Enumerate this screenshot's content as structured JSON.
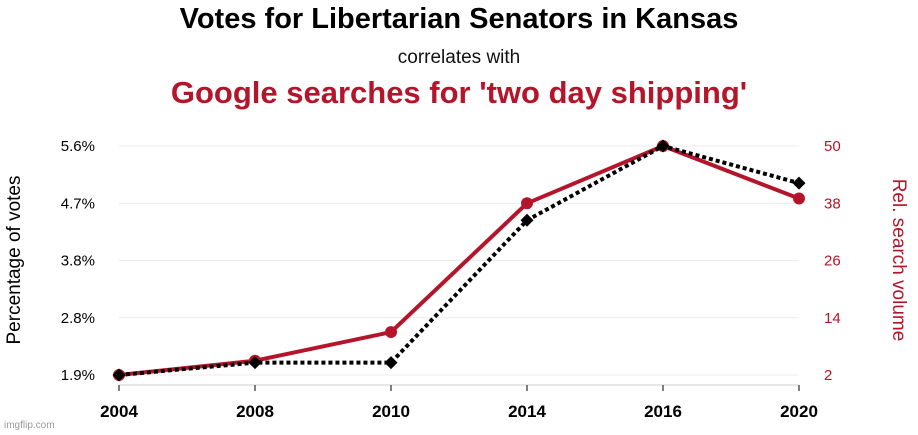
{
  "chart_data": {
    "type": "line",
    "title": "Votes for Libertarian Senators in Kansas",
    "subtitle": "correlates with",
    "title2": "Google searches for 'two day shipping'",
    "categories": [
      "2004",
      "2008",
      "2010",
      "2014",
      "2016",
      "2020"
    ],
    "ylabel_left": "Percentage of votes",
    "ylabel_right": "Rel. search volume",
    "left_ticks": [
      "1.9%",
      "2.8%",
      "3.8%",
      "4.7%",
      "5.6%"
    ],
    "right_ticks": [
      "2",
      "14",
      "26",
      "38",
      "50"
    ],
    "ylim_left": [
      1.9,
      5.6
    ],
    "ylim_right": [
      2,
      50
    ],
    "grid": true,
    "series": [
      {
        "name": "Votes for Libertarian Senators in Kansas",
        "axis": "left",
        "style": "dotted",
        "marker": "diamond",
        "color": "#000000",
        "values": [
          1.9,
          2.1,
          2.1,
          4.4,
          5.6,
          5.0
        ]
      },
      {
        "name": "Google searches for 'two day shipping'",
        "axis": "right",
        "style": "solid",
        "marker": "circle",
        "color": "#b5152b",
        "values": [
          2,
          5,
          11,
          38,
          50,
          39
        ]
      }
    ]
  },
  "watermark": "imgflip.com"
}
